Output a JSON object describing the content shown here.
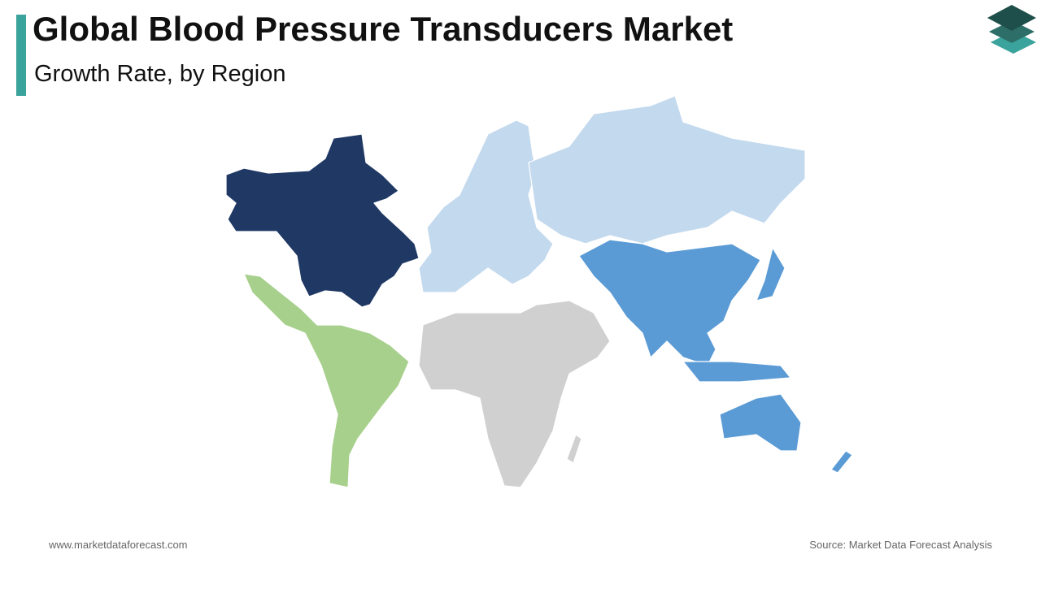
{
  "header": {
    "title": "Global Blood Pressure Transducers Market",
    "subtitle": "Growth Rate, by Region"
  },
  "footer": {
    "website": "www.marketdataforecast.com",
    "source": "Source: Market Data Forecast Analysis"
  }
}
